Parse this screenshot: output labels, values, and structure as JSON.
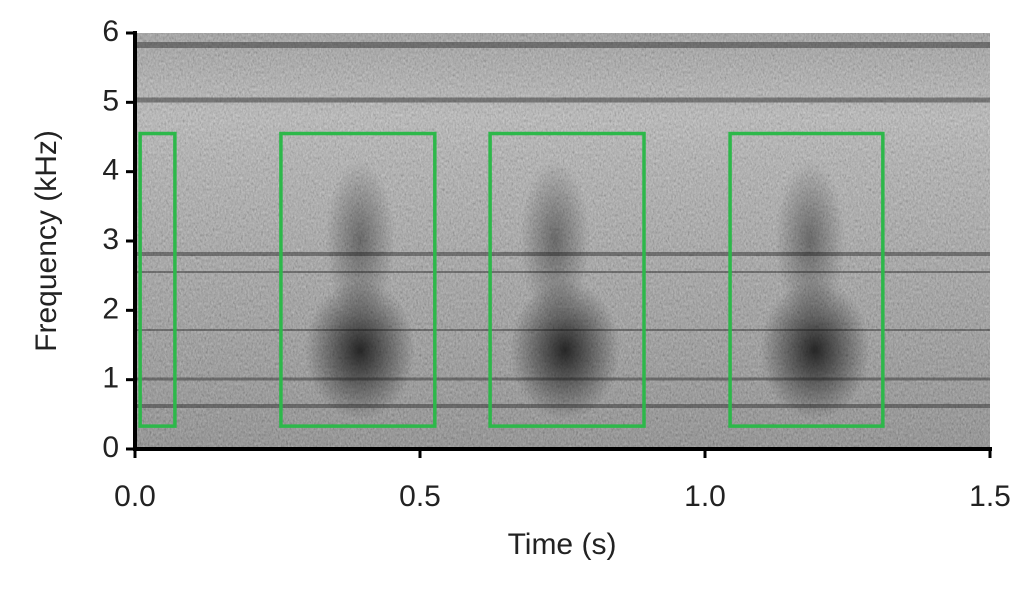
{
  "chart_data": {
    "type": "spectrogram",
    "xlabel": "Time (s)",
    "ylabel": "Frequency (kHz)",
    "xlim": [
      0,
      1.5
    ],
    "ylim": [
      0,
      6
    ],
    "xticks": [
      {
        "value": 0,
        "label": "0.0"
      },
      0.5,
      {
        "value": 1,
        "label": "1.0"
      },
      1.5
    ],
    "yticks": [
      0,
      1,
      2,
      3,
      4,
      5,
      6
    ],
    "box_color": "#2db84a",
    "regions": [
      {
        "x": [
          0.009,
          0.07
        ],
        "y": [
          0.33,
          4.55
        ]
      },
      {
        "x": [
          0.256,
          0.526
        ],
        "y": [
          0.33,
          4.55
        ]
      },
      {
        "x": [
          0.623,
          0.893
        ],
        "y": [
          0.33,
          4.55
        ]
      },
      {
        "x": [
          1.044,
          1.312
        ],
        "y": [
          0.33,
          4.55
        ]
      }
    ]
  }
}
